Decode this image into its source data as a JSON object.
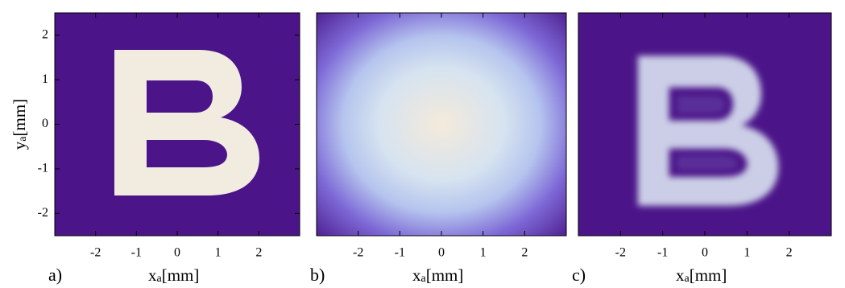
{
  "chart_data": [
    {
      "type": "image",
      "panel_label": "a)",
      "xlabel": "x",
      "xlabel_sub": "a",
      "xlabel_unit": "[mm]",
      "ylabel": "y",
      "ylabel_sub": "a",
      "ylabel_unit": "[mm]",
      "xlim": [
        -3,
        3
      ],
      "ylim": [
        -2.5,
        2.5
      ],
      "xticks": [
        -2,
        -1,
        0,
        1,
        2
      ],
      "yticks": [
        -2,
        -1,
        0,
        1,
        2
      ]
    },
    {
      "type": "image",
      "panel_label": "b)",
      "xlabel": "x",
      "xlabel_sub": "a",
      "xlabel_unit": "[mm]",
      "xlim": [
        -3,
        3
      ],
      "ylim": [
        -2.5,
        2.5
      ],
      "xticks": [
        -2,
        -1,
        0,
        1,
        2
      ]
    },
    {
      "type": "image",
      "panel_label": "c)",
      "xlabel": "x",
      "xlabel_sub": "a",
      "xlabel_unit": "[mm]",
      "xlim": [
        -3,
        3
      ],
      "ylim": [
        -2.5,
        2.5
      ],
      "xticks": [
        -2,
        -1,
        0,
        1,
        2
      ]
    }
  ]
}
